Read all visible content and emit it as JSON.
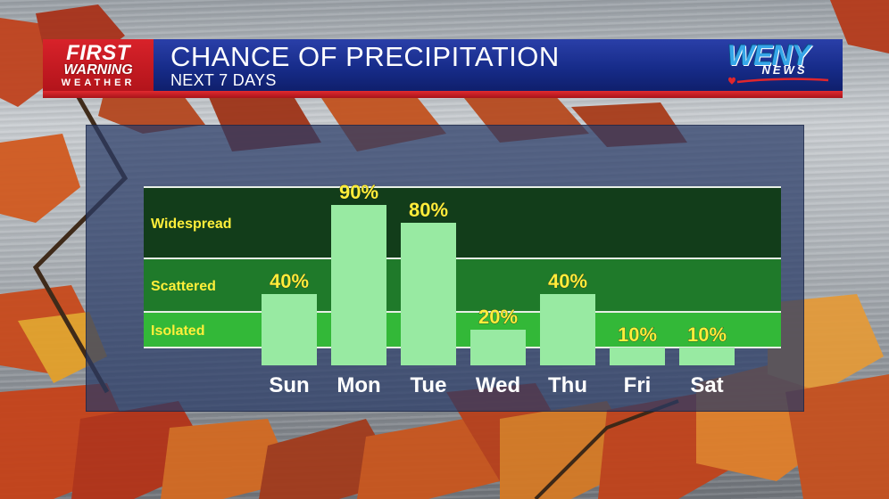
{
  "header": {
    "logo_first": "FIRST",
    "logo_warning": "WARNING",
    "logo_weather": "WEATHER",
    "title": "CHANCE OF PRECIPITATION",
    "subtitle": "NEXT 7 DAYS",
    "station_name": "WENY",
    "station_sub": "NEWS"
  },
  "colors": {
    "banner_blue": "#172c8a",
    "banner_red": "#d8222a",
    "band_widespread": "#123d1a",
    "band_scattered": "#1f7a2a",
    "band_isolated": "#33b838",
    "bar": "#98eaa2",
    "value_label": "#ffef3a",
    "day_label": "#ffffff"
  },
  "chart_data": {
    "type": "bar",
    "title": "CHANCE OF PRECIPITATION",
    "subtitle": "NEXT 7 DAYS",
    "categories": [
      "Sun",
      "Mon",
      "Tue",
      "Wed",
      "Thu",
      "Fri",
      "Sat"
    ],
    "values": [
      40,
      90,
      80,
      20,
      40,
      10,
      10
    ],
    "value_labels": [
      "40%",
      "90%",
      "80%",
      "20%",
      "40%",
      "10%",
      "10%"
    ],
    "unit": "%",
    "ylim": [
      0,
      100
    ],
    "bands": [
      {
        "label": "Widespread",
        "from": 60,
        "to": 100
      },
      {
        "label": "Scattered",
        "from": 30,
        "to": 60
      },
      {
        "label": "Isolated",
        "from": 10,
        "to": 30
      }
    ],
    "grid": false,
    "legend": "none"
  }
}
